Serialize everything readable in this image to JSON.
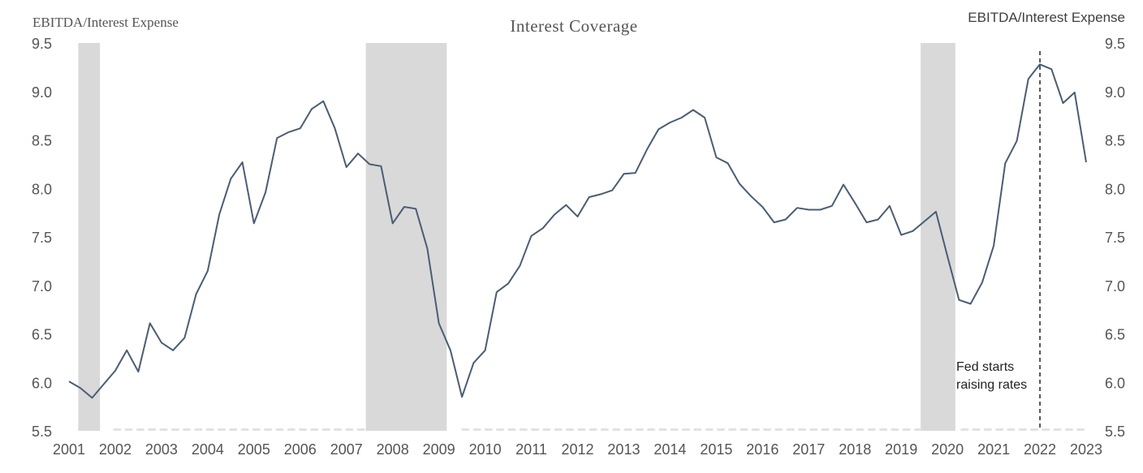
{
  "chart_data": {
    "type": "line",
    "title": "Interest Coverage",
    "ylabel_left": "EBITDA/Interest Expense",
    "ylabel_right": "EBITDA/Interest Expense",
    "ylim": [
      5.5,
      9.5
    ],
    "yticks": [
      "5.5",
      "6.0",
      "6.5",
      "7.0",
      "7.5",
      "8.0",
      "8.5",
      "9.0",
      "9.5"
    ],
    "xlim": [
      2001.0,
      2023.0
    ],
    "xticks": [
      "2001",
      "2002",
      "2003",
      "2004",
      "2005",
      "2006",
      "2007",
      "2008",
      "2009",
      "2010",
      "2011",
      "2012",
      "2013",
      "2014",
      "2015",
      "2016",
      "2017",
      "2018",
      "2019",
      "2020",
      "2021",
      "2022",
      "2023"
    ],
    "grid": false,
    "line_color": "#4a5d73",
    "recession_color": "#d9d9d9",
    "recession_bands": [
      {
        "start": 2001.2,
        "end": 2001.67
      },
      {
        "start": 2007.42,
        "end": 2009.17
      },
      {
        "start": 2019.42,
        "end": 2020.17
      }
    ],
    "series": [
      {
        "x": [
          2001.0,
          2001.25,
          2001.5,
          2001.75,
          2002.0,
          2002.25,
          2002.5,
          2002.75,
          2003.0,
          2003.25,
          2003.5,
          2003.75,
          2004.0,
          2004.25,
          2004.5,
          2004.75,
          2005.0,
          2005.25,
          2005.5,
          2005.75,
          2006.0,
          2006.25,
          2006.5,
          2006.75,
          2007.0,
          2007.25,
          2007.5,
          2007.75,
          2008.0,
          2008.25,
          2008.5,
          2008.75,
          2009.0,
          2009.25,
          2009.5,
          2009.75,
          2010.0,
          2010.25,
          2010.5,
          2010.75,
          2011.0,
          2011.25,
          2011.5,
          2011.75,
          2012.0,
          2012.25,
          2012.5,
          2012.75,
          2013.0,
          2013.25,
          2013.5,
          2013.75,
          2014.0,
          2014.25,
          2014.5,
          2014.75,
          2015.0,
          2015.25,
          2015.5,
          2015.75,
          2016.0,
          2016.25,
          2016.5,
          2016.75,
          2017.0,
          2017.25,
          2017.5,
          2017.75,
          2018.0,
          2018.25,
          2018.5,
          2018.75,
          2019.0,
          2019.25,
          2019.5,
          2019.75,
          2020.0,
          2020.25,
          2020.5,
          2020.75,
          2021.0,
          2021.25,
          2021.5,
          2021.75,
          2022.0,
          2022.25,
          2022.5,
          2022.75,
          2023.0
        ],
        "values": [
          6.01,
          5.94,
          5.84,
          5.98,
          6.12,
          6.33,
          6.11,
          6.61,
          6.41,
          6.33,
          6.46,
          6.91,
          7.15,
          7.73,
          8.1,
          8.27,
          7.64,
          7.96,
          8.52,
          8.58,
          8.62,
          8.82,
          8.9,
          8.62,
          8.22,
          8.36,
          8.25,
          8.23,
          7.64,
          7.81,
          7.79,
          7.38,
          6.61,
          6.33,
          5.85,
          6.2,
          6.33,
          6.93,
          7.02,
          7.2,
          7.51,
          7.59,
          7.73,
          7.83,
          7.71,
          7.91,
          7.94,
          7.98,
          8.15,
          8.16,
          8.4,
          8.61,
          8.68,
          8.73,
          8.81,
          8.73,
          8.32,
          8.26,
          8.05,
          7.92,
          7.81,
          7.65,
          7.68,
          7.8,
          7.78,
          7.78,
          7.82,
          8.04,
          7.85,
          7.65,
          7.68,
          7.82,
          7.52,
          7.56,
          7.66,
          7.76,
          7.3,
          6.85,
          6.81,
          7.03,
          7.41,
          8.26,
          8.49,
          9.13,
          9.28,
          9.23,
          8.88,
          8.99,
          8.27
        ]
      }
    ],
    "annotation": {
      "x": 2022.0,
      "line1": "Fed starts",
      "line2": "raising rates"
    }
  }
}
